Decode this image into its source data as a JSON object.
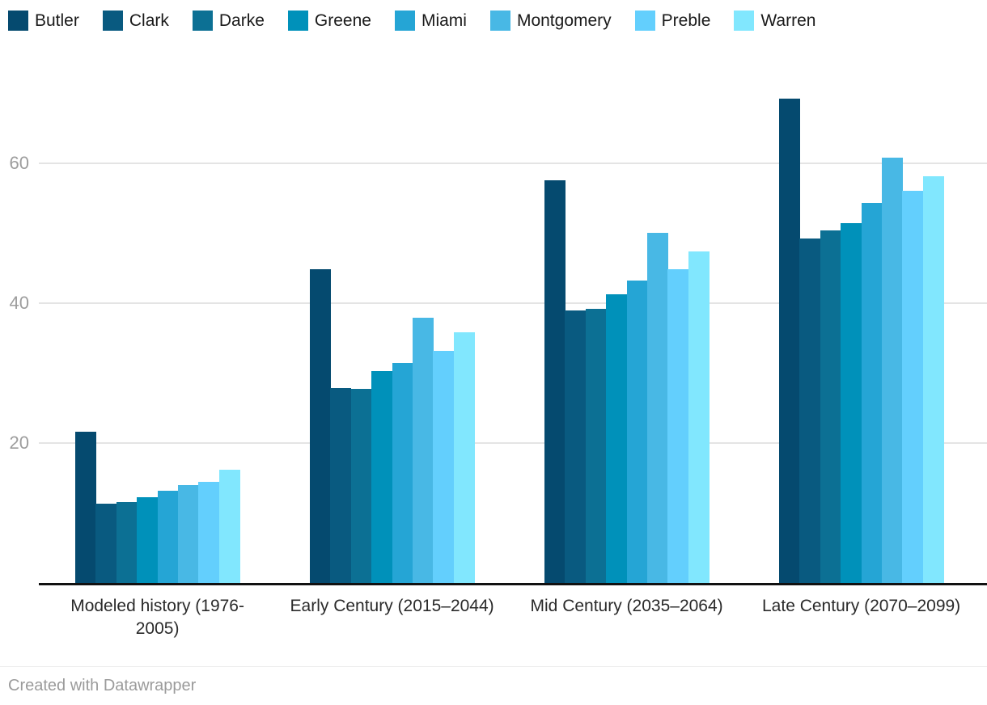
{
  "chart_data": {
    "type": "bar",
    "title": "",
    "categories": [
      "Modeled history (1976-2005)",
      "Early Century (2015–2044)",
      "Mid Century (2035–2064)",
      "Late Century (2070–2099)"
    ],
    "series": [
      {
        "name": "Butler",
        "color": "#054a6f",
        "values": [
          21.6,
          44.9,
          57.6,
          69.2
        ]
      },
      {
        "name": "Clark",
        "color": "#095a80",
        "values": [
          11.3,
          27.9,
          39.0,
          49.2
        ]
      },
      {
        "name": "Darke",
        "color": "#0c7094",
        "values": [
          11.6,
          27.7,
          39.2,
          50.4
        ]
      },
      {
        "name": "Greene",
        "color": "#0091ba",
        "values": [
          12.3,
          30.3,
          41.3,
          51.4
        ]
      },
      {
        "name": "Miami",
        "color": "#25a5d5",
        "values": [
          13.2,
          31.4,
          43.2,
          54.3
        ]
      },
      {
        "name": "Montgomery",
        "color": "#48b8e5",
        "values": [
          14.0,
          37.9,
          50.1,
          60.8
        ]
      },
      {
        "name": "Preble",
        "color": "#63cffd",
        "values": [
          14.5,
          33.2,
          44.9,
          56.1
        ]
      },
      {
        "name": "Warren",
        "color": "#81e7fe",
        "values": [
          16.2,
          35.8,
          47.4,
          58.2
        ]
      }
    ],
    "xlabel": "",
    "ylabel": "",
    "ylim": [
      0,
      72
    ],
    "yticks": [
      20,
      40,
      60
    ],
    "grid": true,
    "legend_position": "top"
  },
  "footer": {
    "credit": "Created with Datawrapper"
  },
  "colors": {
    "background": "#ffffff",
    "gridline": "#e4e4e4",
    "axis_line": "#111111",
    "tick_label": "#9d9d9d",
    "category_label": "#2a2a2a",
    "legend_label": "#1a1a1a",
    "footer_text": "#9b9b9b",
    "footer_divider": "#ededed"
  }
}
